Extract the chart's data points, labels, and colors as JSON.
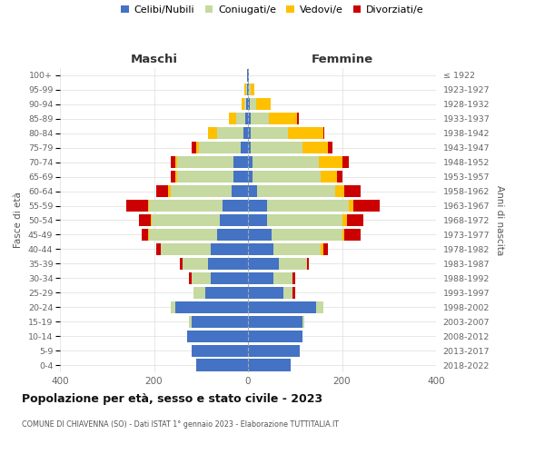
{
  "age_groups": [
    "0-4",
    "5-9",
    "10-14",
    "15-19",
    "20-24",
    "25-29",
    "30-34",
    "35-39",
    "40-44",
    "45-49",
    "50-54",
    "55-59",
    "60-64",
    "65-69",
    "70-74",
    "75-79",
    "80-84",
    "85-89",
    "90-94",
    "95-99",
    "100+"
  ],
  "birth_years": [
    "2018-2022",
    "2013-2017",
    "2008-2012",
    "2003-2007",
    "1998-2002",
    "1993-1997",
    "1988-1992",
    "1983-1987",
    "1978-1982",
    "1973-1977",
    "1968-1972",
    "1963-1967",
    "1958-1962",
    "1953-1957",
    "1948-1952",
    "1943-1947",
    "1938-1942",
    "1933-1937",
    "1928-1932",
    "1923-1927",
    "≤ 1922"
  ],
  "colors": {
    "celibi": "#4472c4",
    "coniugati": "#c5d9a0",
    "vedovi": "#ffc000",
    "divorziati": "#cc0000"
  },
  "maschi": {
    "celibi": [
      110,
      120,
      130,
      120,
      155,
      90,
      80,
      85,
      80,
      65,
      60,
      55,
      35,
      30,
      30,
      15,
      10,
      5,
      3,
      2,
      1
    ],
    "coniugati": [
      0,
      0,
      0,
      5,
      10,
      25,
      40,
      55,
      105,
      145,
      145,
      155,
      130,
      120,
      120,
      90,
      55,
      20,
      5,
      2,
      0
    ],
    "vedovi": [
      0,
      0,
      0,
      0,
      0,
      0,
      0,
      0,
      0,
      2,
      2,
      3,
      5,
      5,
      5,
      5,
      20,
      15,
      5,
      3,
      0
    ],
    "divorziati": [
      0,
      0,
      0,
      0,
      0,
      0,
      5,
      5,
      10,
      15,
      25,
      45,
      25,
      10,
      10,
      10,
      0,
      0,
      0,
      0,
      0
    ]
  },
  "femmine": {
    "celibi": [
      90,
      110,
      115,
      115,
      145,
      75,
      55,
      65,
      55,
      50,
      40,
      40,
      20,
      10,
      10,
      5,
      5,
      5,
      3,
      2,
      1
    ],
    "coniugati": [
      0,
      0,
      0,
      5,
      15,
      20,
      40,
      60,
      100,
      150,
      160,
      175,
      165,
      145,
      140,
      110,
      80,
      40,
      15,
      3,
      0
    ],
    "vedovi": [
      0,
      0,
      0,
      0,
      0,
      0,
      0,
      0,
      5,
      5,
      10,
      10,
      20,
      35,
      50,
      55,
      75,
      60,
      30,
      8,
      1
    ],
    "divorziati": [
      0,
      0,
      0,
      0,
      0,
      5,
      5,
      5,
      10,
      35,
      35,
      55,
      35,
      10,
      15,
      10,
      3,
      3,
      0,
      0,
      0
    ]
  },
  "xlim": 400,
  "title": "Popolazione per età, sesso e stato civile - 2023",
  "subtitle": "COMUNE DI CHIAVENNA (SO) - Dati ISTAT 1° gennaio 2023 - Elaborazione TUTTITALIA.IT",
  "xlabel_left": "Maschi",
  "xlabel_right": "Femmine",
  "ylabel_left": "Fasce di età",
  "ylabel_right": "Anni di nascita",
  "legend_labels": [
    "Celibi/Nubili",
    "Coniugati/e",
    "Vedovi/e",
    "Divorziati/e"
  ],
  "background_color": "#ffffff"
}
